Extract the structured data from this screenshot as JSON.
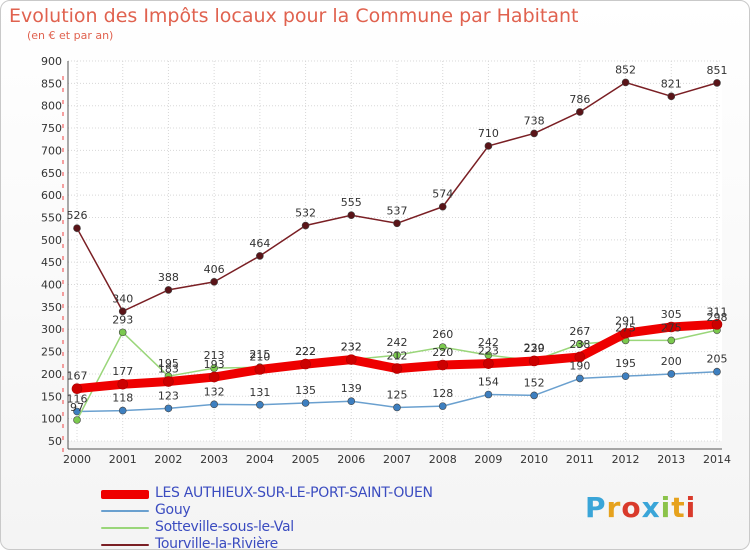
{
  "title": "Evolution des Impôts locaux pour la Commune par Habitant",
  "subtitle": "(en € et par an)",
  "logo": {
    "text": "Proxiti",
    "colors": [
      "#3aa5d8",
      "#e6a21d",
      "#d93a2b",
      "#3aa5d8",
      "#8bc34a",
      "#e6a21d",
      "#d93a2b"
    ]
  },
  "chart_data": {
    "type": "line",
    "x": [
      2000,
      2001,
      2002,
      2003,
      2004,
      2005,
      2006,
      2007,
      2008,
      2009,
      2010,
      2011,
      2012,
      2013,
      2014
    ],
    "ylim": [
      50,
      900
    ],
    "yticks": [
      50,
      100,
      150,
      200,
      250,
      300,
      350,
      400,
      450,
      500,
      550,
      600,
      650,
      700,
      750,
      800,
      850,
      900
    ],
    "grid": true,
    "legend_position": "bottom-left",
    "series": [
      {
        "name": "Tourville-la-Rivière",
        "color": "#7a1f24",
        "marker": "#5a1418",
        "values": [
          526,
          340,
          388,
          406,
          464,
          532,
          555,
          537,
          574,
          710,
          738,
          786,
          852,
          821,
          851
        ]
      },
      {
        "name": "Gouy",
        "color": "#6aa0cf",
        "marker": "#3d7fc0",
        "values": [
          116,
          118,
          123,
          132,
          131,
          135,
          139,
          125,
          128,
          154,
          152,
          190,
          195,
          200,
          205
        ]
      },
      {
        "name": "Sotteville-sous-le-Val",
        "color": "#9ad67a",
        "marker": "#7bc94e",
        "values": [
          97,
          293,
          195,
          213,
          215,
          222,
          232,
          242,
          260,
          242,
          230,
          267,
          275,
          275,
          298
        ]
      },
      {
        "name": "LES AUTHIEUX-SUR-LE-PORT-SAINT-OUEN",
        "color": "#ee0000",
        "marker": "#cc0000",
        "values": [
          167,
          177,
          183,
          193,
          210,
          222,
          232,
          212,
          220,
          223,
          229,
          238,
          291,
          305,
          311
        ]
      }
    ]
  },
  "legend": [
    {
      "label": "LES AUTHIEUX-SUR-LE-PORT-SAINT-OUEN",
      "color": "#ee0000",
      "thick": true
    },
    {
      "label": "Gouy",
      "color": "#6aa0cf",
      "thick": false
    },
    {
      "label": "Sotteville-sous-le-Val",
      "color": "#9ad67a",
      "thick": false
    },
    {
      "label": "Tourville-la-Rivière",
      "color": "#7a1f24",
      "thick": false
    }
  ]
}
